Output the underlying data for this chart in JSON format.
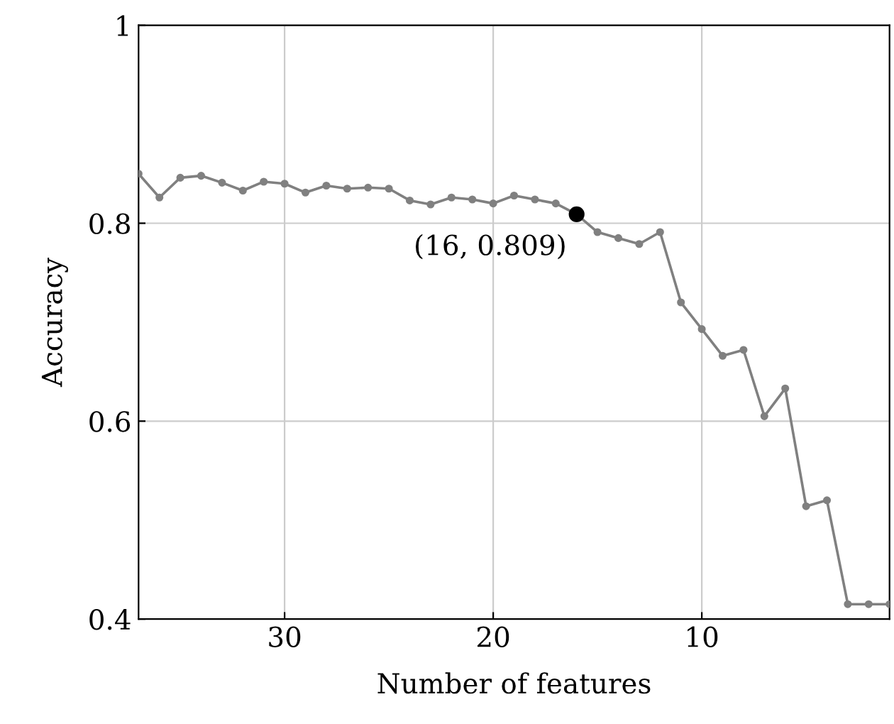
{
  "chart_data": {
    "type": "line",
    "xlabel": "Number of features",
    "ylabel": "Accuracy",
    "x": [
      37,
      36,
      35,
      34,
      33,
      32,
      31,
      30,
      29,
      28,
      27,
      26,
      25,
      24,
      23,
      22,
      21,
      20,
      19,
      18,
      17,
      16,
      15,
      14,
      13,
      12,
      11,
      10,
      9,
      8,
      7,
      6,
      5,
      4,
      3,
      2,
      1
    ],
    "series": [
      {
        "color": "#808080",
        "values": [
          0.85,
          0.826,
          0.846,
          0.848,
          0.841,
          0.833,
          0.842,
          0.84,
          0.831,
          0.838,
          0.835,
          0.836,
          0.835,
          0.823,
          0.819,
          0.826,
          0.824,
          0.82,
          0.828,
          0.824,
          0.82,
          0.809,
          0.791,
          0.785,
          0.779,
          0.791,
          0.72,
          0.693,
          0.666,
          0.672,
          0.605,
          0.633,
          0.514,
          0.52,
          0.415,
          0.415,
          0.415
        ]
      }
    ],
    "xlim": [
      37,
      1
    ],
    "ylim": [
      0.4,
      1
    ],
    "xticks": [
      30,
      20,
      10
    ],
    "yticks": [
      0.4,
      0.6,
      0.8,
      1
    ],
    "grid": true,
    "marker": "circle",
    "line_style": "solid",
    "annotations": [
      {
        "text": "(16, 0.809)",
        "x": 16,
        "y": 0.809
      }
    ]
  }
}
